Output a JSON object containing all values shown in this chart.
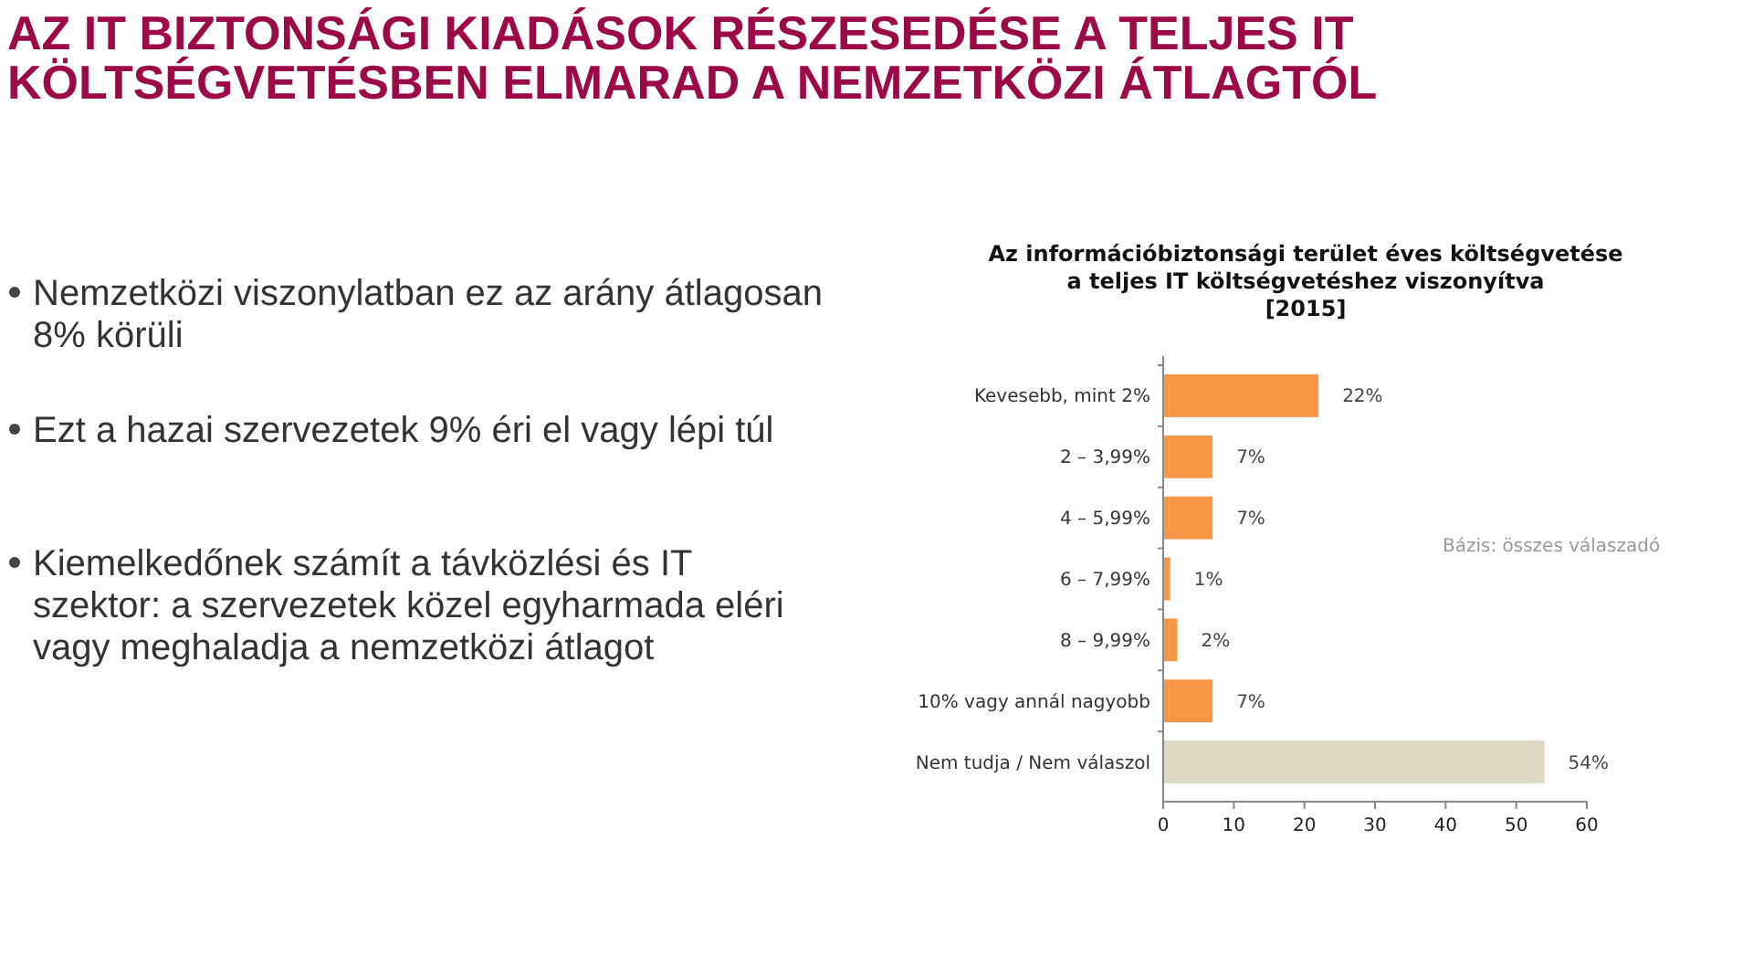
{
  "chart_data": {
    "type": "bar",
    "orientation": "horizontal",
    "title": "AZ IT BIZTONSÁGI KIADÁSOK RÉSZESEDÉSE A TELJES IT KÖLTSÉGVETÉSBEN ELMARAD A NEMZETKÖZI ÁTLAGTÓL",
    "subtitle": "Az információbiztonsági terület éves költségvetése\na teljes IT költségvetéshez viszonyítva\n[2015]",
    "categories": [
      "Kevesebb, mint 2%",
      "2 – 3,99%",
      "4 – 5,99%",
      "6 – 7,99%",
      "8 – 9,99%",
      "10% vagy annál nagyobb",
      "Nem tudja / Nem válaszol"
    ],
    "values": [
      22,
      7,
      7,
      1,
      2,
      7,
      54
    ],
    "colors": [
      "#f79646",
      "#f79646",
      "#f79646",
      "#f79646",
      "#f79646",
      "#f79646",
      "#ddd9c3"
    ],
    "value_labels": [
      "22%",
      "7%",
      "7%",
      "1%",
      "2%",
      "7%",
      "54%"
    ],
    "xlim": [
      0,
      60
    ],
    "xticks": [
      0,
      10,
      20,
      30,
      40,
      50,
      60
    ],
    "grid": false,
    "annotations": [
      "Nemzetközi viszonylatban ez az arány átlagosan 8% körüli",
      "Ezt a hazai szervezetek 9% éri el vagy lépi túl",
      "Kiemelkedőnek számít a távközlési és IT szektor: a szervezetek közel egyharmada eléri vagy meghaladja a nemzetközi átlagot",
      "Bázis: összes válaszadó"
    ]
  }
}
